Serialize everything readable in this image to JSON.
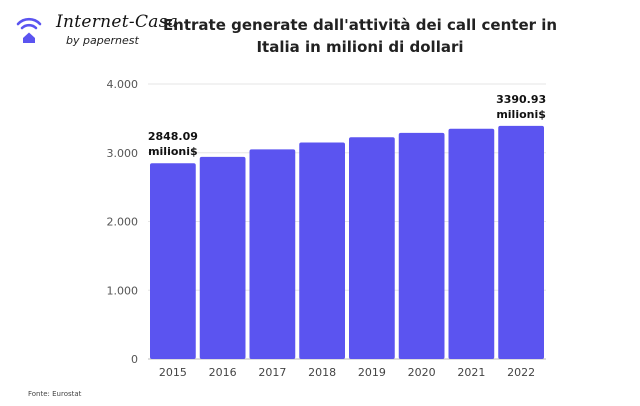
{
  "logo": {
    "name": "Internet-Casa",
    "tagline": "by papernest",
    "accent": "#5b54f0"
  },
  "source": "Fonte: Eurostat",
  "chart_data": {
    "type": "bar",
    "title": "Entrate generate dall'attività dei call center in Italia in milioni di dollari",
    "categories": [
      "2015",
      "2016",
      "2017",
      "2018",
      "2019",
      "2020",
      "2021",
      "2022"
    ],
    "values": [
      2848.09,
      2940,
      3050,
      3150,
      3225,
      3290,
      3350,
      3390.93
    ],
    "ylim": [
      0,
      4000
    ],
    "y_ticks": [
      {
        "value": 0,
        "label": "0"
      },
      {
        "value": 1000,
        "label": "1.000"
      },
      {
        "value": 2000,
        "label": "2.000"
      },
      {
        "value": 3000,
        "label": "3.000"
      },
      {
        "value": 4000,
        "label": "4.000"
      }
    ],
    "annotations": [
      {
        "index": 0,
        "lines": [
          "2848.09",
          "milioni$"
        ]
      },
      {
        "index": 7,
        "lines": [
          "3390.93",
          "milioni$"
        ]
      }
    ],
    "grid": true,
    "bar_color": "#5b54f0",
    "xlabel": "",
    "ylabel": ""
  }
}
